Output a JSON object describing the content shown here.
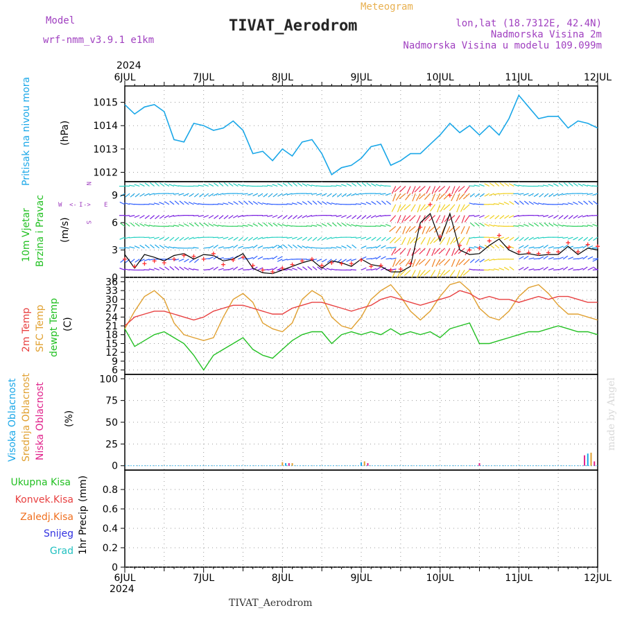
{
  "header": {
    "model_label": "Model",
    "model_name": "wrf-nmm_v3.9.1 e1km",
    "subtitle": "Meteogram",
    "station_title": "TIVAT_Aerodrom",
    "lonlat": "lon,lat (18.7312E, 42.4N)",
    "elev_station": "Nadmorska Visina 2m",
    "elev_model": "Nadmorska Visina u modelu 109.099m",
    "footer_station": "TIVAT_Aerodrom",
    "credit": "made by Angel",
    "year_top": "2024",
    "year_bottom": "2024"
  },
  "colors": {
    "pressure": "#1aa7e8",
    "temp2m": "#e84040",
    "sfc_temp": "#e0a030",
    "dewpoint": "#22c022",
    "wind_mean": "#000000",
    "wind_gust": "#ff3030",
    "ukupna": "#22c022",
    "konvek": "#e84040",
    "zaledj": "#f07020",
    "snijeg": "#3030e0",
    "grad": "#20c0c0",
    "visoka": "#1aa7e8",
    "srednja": "#e0a030",
    "niska": "#e0208a",
    "purple_text": "#a040c0",
    "title_orange": "#e8b050"
  },
  "days": [
    "6JUL",
    "7JUL",
    "8JUL",
    "9JUL",
    "10JUL",
    "11JUL",
    "12JUL"
  ],
  "chart_data": [
    {
      "type": "line",
      "name": "pressure",
      "ylabel": "Pritisak na nivou mora",
      "unit": "(hPa)",
      "ylim": [
        1011.6,
        1015.7
      ],
      "yticks": [
        1012,
        1013,
        1014,
        1015
      ],
      "x_hours": [
        0,
        3,
        6,
        9,
        12,
        15,
        18,
        21,
        24,
        27,
        30,
        33,
        36,
        39,
        42,
        45,
        48,
        51,
        54,
        57,
        60,
        63,
        66,
        69,
        72,
        75,
        78,
        81,
        84,
        87,
        90,
        93,
        96,
        99,
        102,
        105,
        108,
        111,
        114,
        117,
        120,
        123,
        126,
        129,
        132,
        135,
        138,
        141,
        144
      ],
      "values": [
        1014.9,
        1014.5,
        1014.8,
        1014.9,
        1014.6,
        1013.4,
        1013.3,
        1014.1,
        1014.0,
        1013.8,
        1013.9,
        1014.2,
        1013.8,
        1012.8,
        1012.9,
        1012.5,
        1013.0,
        1012.7,
        1013.3,
        1013.4,
        1012.8,
        1011.9,
        1012.2,
        1012.3,
        1012.6,
        1013.1,
        1013.2,
        1012.3,
        1012.5,
        1012.8,
        1012.8,
        1013.2,
        1013.6,
        1014.1,
        1013.7,
        1014.0,
        1013.6,
        1014.0,
        1013.6,
        1014.3,
        1015.3,
        1014.8,
        1014.3,
        1014.4,
        1014.4,
        1013.9,
        1014.2,
        1014.1,
        1013.9
      ]
    },
    {
      "type": "line",
      "name": "wind",
      "ylabel": "10m Vjetar Brzina i Pravac",
      "unit": "(m/s)",
      "ylim": [
        0,
        10.5
      ],
      "yticks": [
        0,
        3,
        6,
        9
      ],
      "compass": "W <-I-> E, N/S",
      "x_hours": [
        0,
        3,
        6,
        9,
        12,
        15,
        18,
        21,
        24,
        27,
        30,
        33,
        36,
        39,
        42,
        45,
        48,
        51,
        54,
        57,
        60,
        63,
        66,
        69,
        72,
        75,
        78,
        81,
        84,
        87,
        90,
        93,
        96,
        99,
        102,
        105,
        108,
        111,
        114,
        117,
        120,
        123,
        126,
        129,
        132,
        135,
        138,
        141,
        144
      ],
      "mean": [
        2.5,
        1.0,
        2.5,
        2.2,
        1.8,
        2.4,
        2.6,
        2.0,
        2.5,
        2.4,
        1.8,
        2.0,
        2.6,
        1.0,
        0.5,
        0.4,
        0.8,
        1.2,
        1.6,
        1.9,
        1.0,
        1.8,
        1.6,
        1.2,
        2.0,
        1.4,
        1.2,
        0.6,
        0.6,
        1.2,
        6.0,
        7.0,
        4.0,
        7.0,
        3.0,
        2.5,
        2.6,
        3.5,
        4.2,
        3.0,
        2.5,
        2.6,
        2.4,
        2.5,
        2.5,
        3.4,
        2.5,
        3.2,
        3.0
      ],
      "gust": [
        2.0,
        1.2,
        1.5,
        1.8,
        1.6,
        2.0,
        2.4,
        2.3,
        2.0,
        2.6,
        1.4,
        1.9,
        2.2,
        1.3,
        0.8,
        0.6,
        1.0,
        1.4,
        1.8,
        2.0,
        1.3,
        1.6,
        1.5,
        1.5,
        1.9,
        1.2,
        1.3,
        0.8,
        0.9,
        1.5,
        5.5,
        8.0,
        4.5,
        9.0,
        3.5,
        3.0,
        3.2,
        4.0,
        4.6,
        3.3,
        2.8,
        2.7,
        2.6,
        2.7,
        2.8,
        3.8,
        2.8,
        3.6,
        3.4
      ]
    },
    {
      "type": "line",
      "name": "temperature",
      "ylabel": "2m Temp, SFC Temp, dewpt Temp",
      "unit": "(C)",
      "ylim": [
        4.5,
        37.5
      ],
      "yticks": [
        6,
        9,
        12,
        15,
        18,
        21,
        24,
        27,
        30,
        33,
        36
      ],
      "x_hours": [
        0,
        3,
        6,
        9,
        12,
        15,
        18,
        21,
        24,
        27,
        30,
        33,
        36,
        39,
        42,
        45,
        48,
        51,
        54,
        57,
        60,
        63,
        66,
        69,
        72,
        75,
        78,
        81,
        84,
        87,
        90,
        93,
        96,
        99,
        102,
        105,
        108,
        111,
        114,
        117,
        120,
        123,
        126,
        129,
        132,
        135,
        138,
        141,
        144
      ],
      "t2m": [
        21,
        24,
        25,
        26,
        26,
        25,
        24,
        23,
        24,
        26,
        27,
        28,
        28,
        27,
        26,
        25,
        25,
        27,
        28,
        29,
        29,
        28,
        27,
        26,
        27,
        28,
        30,
        31,
        30,
        29,
        28,
        29,
        30,
        31,
        33,
        32,
        30,
        31,
        30,
        30,
        29,
        30,
        31,
        30,
        31,
        31,
        30,
        29,
        29
      ],
      "sfc": [
        20,
        26,
        31,
        33,
        30,
        22,
        18,
        17,
        16,
        17,
        24,
        30,
        32,
        29,
        22,
        20,
        19,
        22,
        30,
        33,
        31,
        24,
        21,
        20,
        24,
        30,
        33,
        35,
        31,
        26,
        23,
        26,
        31,
        35,
        36,
        33,
        27,
        24,
        23,
        26,
        31,
        34,
        35,
        32,
        28,
        25,
        25,
        24,
        23
      ],
      "dewpt": [
        20,
        14,
        16,
        18,
        19,
        17,
        15,
        11,
        6,
        11,
        13,
        15,
        17,
        13,
        11,
        10,
        13,
        16,
        18,
        19,
        19,
        15,
        18,
        19,
        18,
        19,
        18,
        20,
        18,
        19,
        18,
        19,
        17,
        20,
        21,
        22,
        15,
        15,
        16,
        17,
        18,
        19,
        19,
        20,
        21,
        20,
        19,
        19,
        18
      ]
    },
    {
      "type": "bar",
      "name": "cloud",
      "ylabel": "Visoka Oblacnost, Srednja Oblacnost, Niska Oblacnost",
      "unit": "(%)",
      "ylim": [
        -5,
        105
      ],
      "yticks": [
        0,
        25,
        50,
        75,
        100
      ],
      "bars": [
        {
          "hour": 48,
          "series": "srednja",
          "value": 4
        },
        {
          "hour": 49,
          "series": "visoka",
          "value": 3
        },
        {
          "hour": 50,
          "series": "niska",
          "value": 3
        },
        {
          "hour": 51,
          "series": "srednja",
          "value": 3
        },
        {
          "hour": 72,
          "series": "visoka",
          "value": 4
        },
        {
          "hour": 73,
          "series": "srednja",
          "value": 5
        },
        {
          "hour": 74,
          "series": "niska",
          "value": 3
        },
        {
          "hour": 108,
          "series": "niska",
          "value": 3
        },
        {
          "hour": 140,
          "series": "niska",
          "value": 12
        },
        {
          "hour": 141,
          "series": "visoka",
          "value": 14
        },
        {
          "hour": 142,
          "series": "srednja",
          "value": 15
        },
        {
          "hour": 143,
          "series": "niska",
          "value": 5
        }
      ]
    },
    {
      "type": "bar",
      "name": "precip",
      "ylabel": "1hr Precip",
      "unit": "(mm)",
      "ylim": [
        0,
        1
      ],
      "yticks": [
        0,
        0.2,
        0.4,
        0.6,
        0.8
      ],
      "ytick_labels": [
        "0",
        "0.2",
        "0.4",
        "0.6",
        "0.8"
      ],
      "legend": [
        "Ukupna Kisa",
        "Konvek.Kisa",
        "Zaledj.Kisa",
        "Snijeg",
        "Grad"
      ],
      "values": []
    }
  ]
}
